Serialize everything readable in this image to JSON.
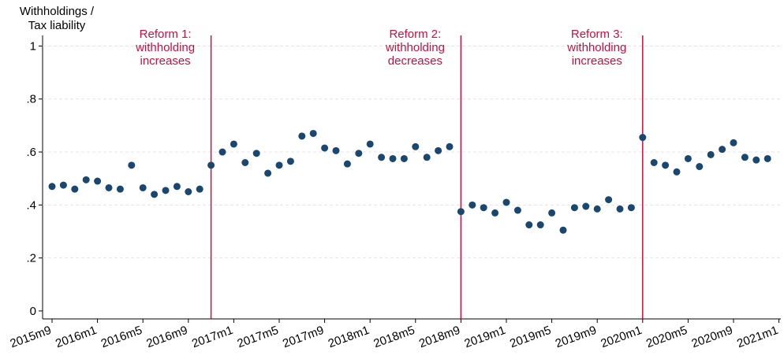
{
  "chart_data": {
    "type": "scatter",
    "y_label": [
      "Withholdings /",
      "Tax liability"
    ],
    "x": [
      "2015m9",
      "2015m10",
      "2015m11",
      "2015m12",
      "2016m1",
      "2016m2",
      "2016m3",
      "2016m4",
      "2016m5",
      "2016m6",
      "2016m7",
      "2016m8",
      "2016m9",
      "2016m10",
      "2016m11",
      "2016m12",
      "2017m1",
      "2017m2",
      "2017m3",
      "2017m4",
      "2017m5",
      "2017m6",
      "2017m7",
      "2017m8",
      "2017m9",
      "2017m10",
      "2017m11",
      "2017m12",
      "2018m1",
      "2018m2",
      "2018m3",
      "2018m4",
      "2018m5",
      "2018m6",
      "2018m7",
      "2018m8",
      "2018m9",
      "2018m10",
      "2018m11",
      "2018m12",
      "2019m1",
      "2019m2",
      "2019m3",
      "2019m4",
      "2019m5",
      "2019m6",
      "2019m7",
      "2019m8",
      "2019m9",
      "2019m10",
      "2019m11",
      "2019m12",
      "2020m1",
      "2020m2",
      "2020m3",
      "2020m4",
      "2020m5",
      "2020m6",
      "2020m7",
      "2020m8",
      "2020m9",
      "2020m10",
      "2020m11",
      "2020m12"
    ],
    "values": [
      0.47,
      0.475,
      0.46,
      0.495,
      0.49,
      0.465,
      0.46,
      0.55,
      0.465,
      0.44,
      0.455,
      0.47,
      0.45,
      0.46,
      0.55,
      0.6,
      0.63,
      0.56,
      0.595,
      0.52,
      0.55,
      0.565,
      0.66,
      0.67,
      0.615,
      0.605,
      0.555,
      0.595,
      0.63,
      0.58,
      0.575,
      0.575,
      0.62,
      0.58,
      0.605,
      0.62,
      0.375,
      0.4,
      0.39,
      0.37,
      0.41,
      0.38,
      0.325,
      0.325,
      0.37,
      0.305,
      0.39,
      0.395,
      0.385,
      0.42,
      0.385,
      0.39,
      0.655,
      0.56,
      0.55,
      0.525,
      0.575,
      0.545,
      0.59,
      0.61,
      0.635,
      0.58,
      0.57,
      0.575
    ],
    "color": "#1a476f",
    "xticks": [
      "2015m9",
      "2016m1",
      "2016m5",
      "2016m9",
      "2017m1",
      "2017m5",
      "2017m9",
      "2018m1",
      "2018m5",
      "2018m9",
      "2019m1",
      "2019m5",
      "2019m9",
      "2020m1",
      "2020m5",
      "2020m9",
      "2021m1"
    ],
    "ylim": [
      -0.03,
      1.04
    ],
    "yticks": [
      0,
      {
        "value": 0.2,
        "label": ".2"
      },
      {
        "value": 0.4,
        "label": ".4"
      },
      {
        "value": 0.6,
        "label": ".6"
      },
      {
        "value": 0.8,
        "label": ".8"
      },
      1
    ],
    "grid": true,
    "annotations": [
      {
        "x": "2016m11",
        "label": [
          "Reform 1:",
          "withholding",
          "increases"
        ]
      },
      {
        "x": "2018m9",
        "label": [
          "Reform 2:",
          "withholding",
          "decreases"
        ]
      },
      {
        "x": "2020m1",
        "label": [
          "Reform 3:",
          "withholding",
          "increases"
        ]
      }
    ],
    "annotation_color": "#c8103e"
  }
}
